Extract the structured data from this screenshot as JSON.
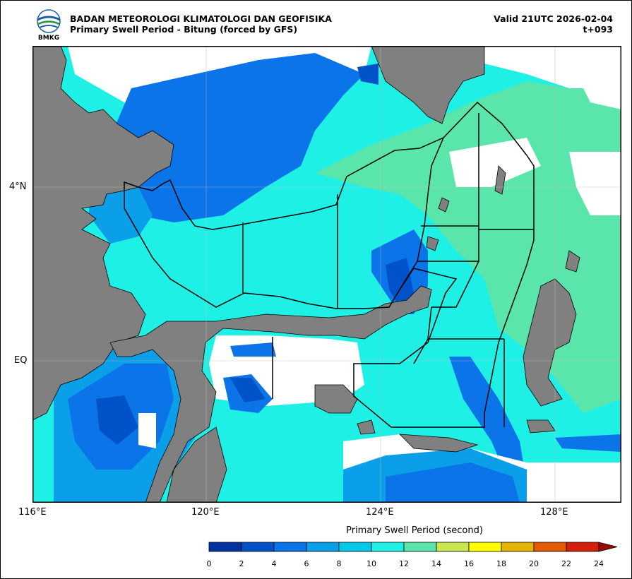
{
  "header": {
    "agency": "BADAN METEOROLOGI KLIMATOLOGI DAN GEOFISIKA",
    "subtitle": "Primary Swell Period - Bitung (forced by GFS)",
    "valid": "Valid 21UTC 2026-02-04",
    "lead": "t+093",
    "logo_text": "BMKG"
  },
  "axes": {
    "x_ticks": [
      "116°E",
      "120°E",
      "124°E",
      "128°E"
    ],
    "y_ticks": [
      "4°N",
      "EQ"
    ]
  },
  "colorbar": {
    "title": "Primary Swell Period (second)",
    "labels": [
      "0",
      "2",
      "4",
      "6",
      "8",
      "10",
      "12",
      "14",
      "16",
      "18",
      "20",
      "22",
      "24"
    ],
    "colors": [
      "#0033a0",
      "#0052c8",
      "#0a74e8",
      "#0a9fe8",
      "#00c8e6",
      "#1ef0e6",
      "#5ae6aa",
      "#c8e650",
      "#ffff00",
      "#e6b400",
      "#e65a00",
      "#d21e0a",
      "#960a0a"
    ]
  },
  "map_colors": {
    "land": "#808080",
    "no_data": "#ffffff"
  }
}
